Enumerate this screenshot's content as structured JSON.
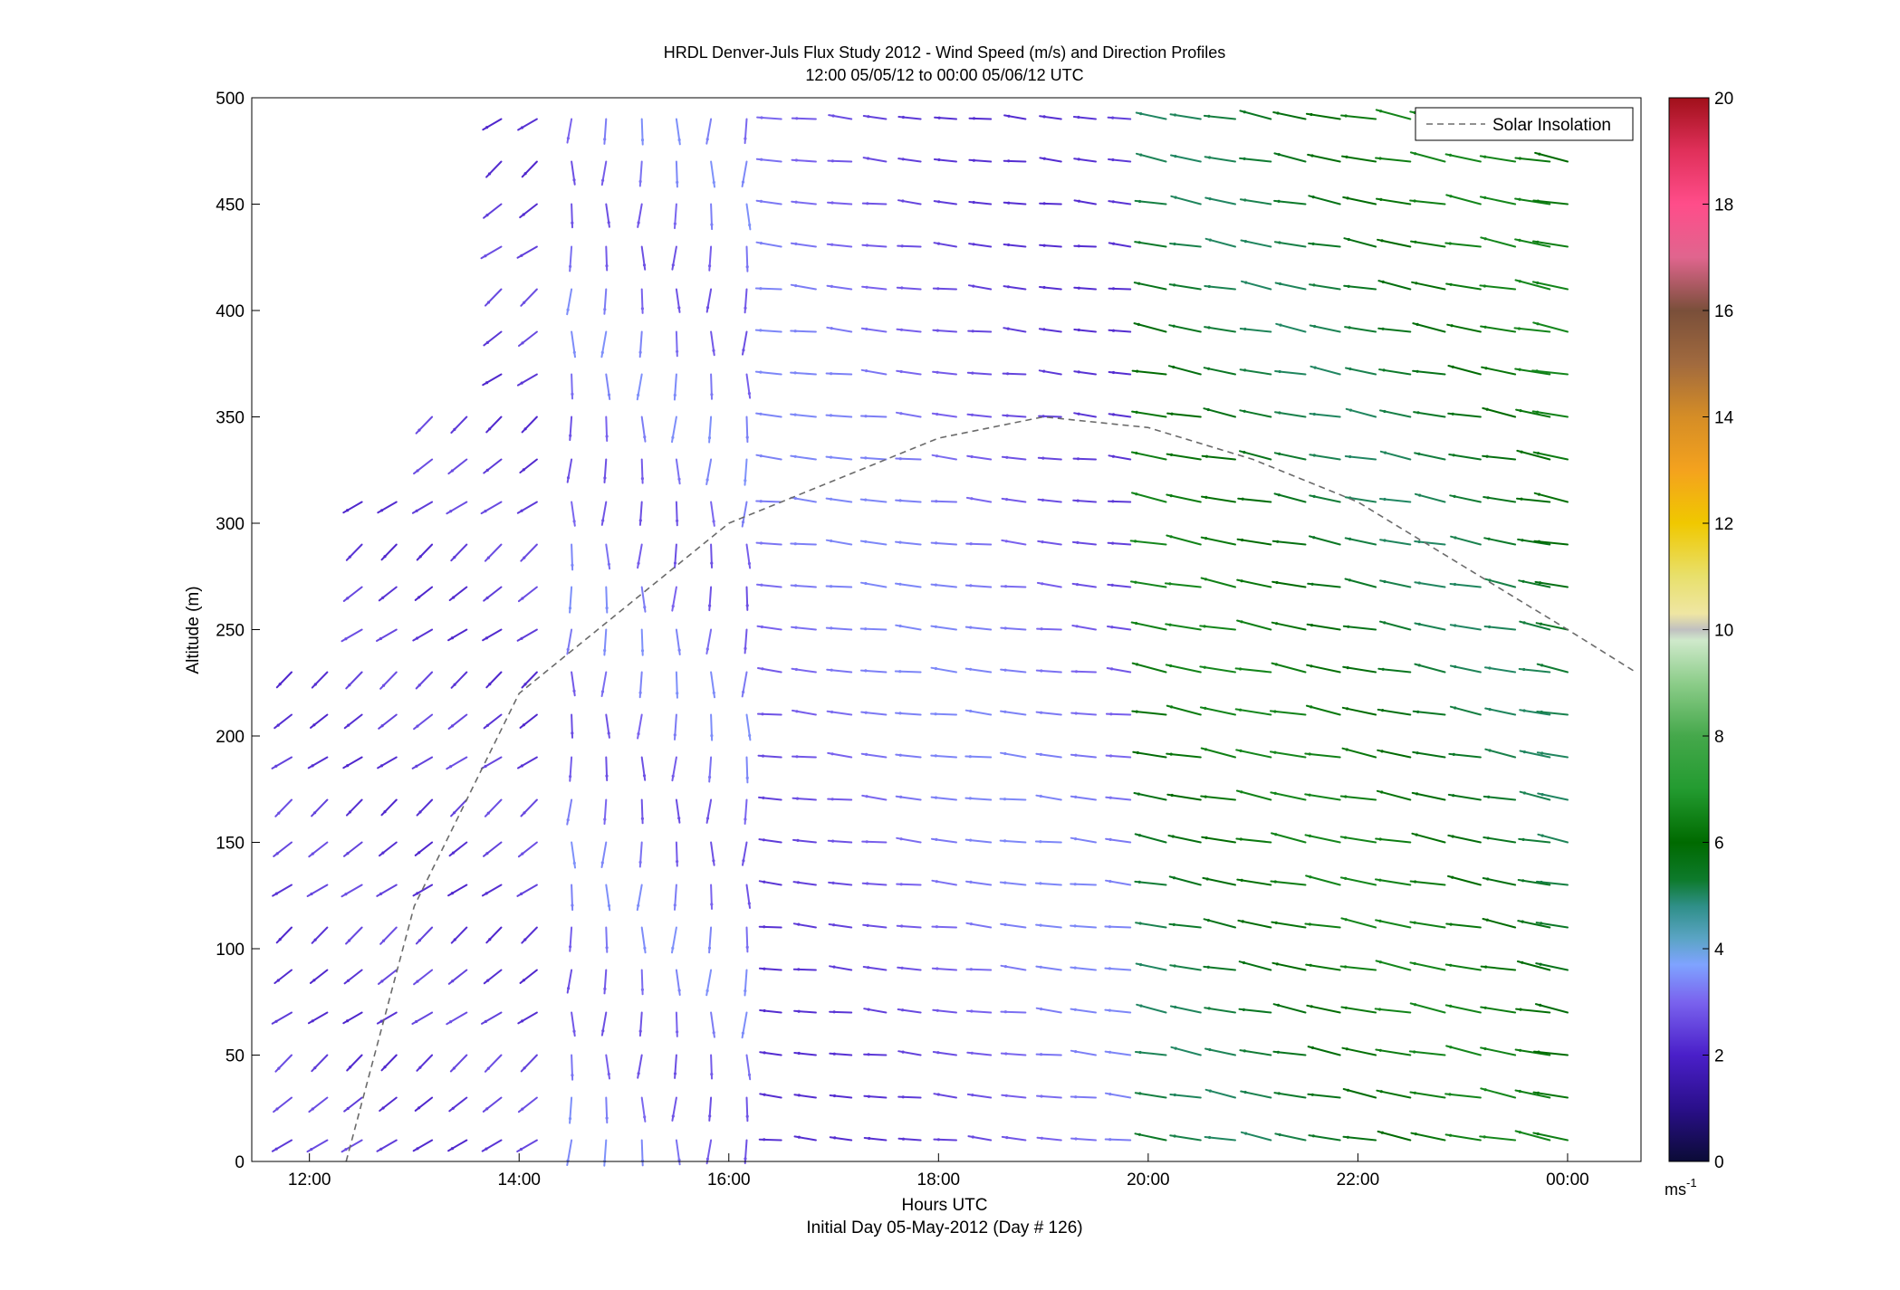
{
  "chart_data": {
    "type": "quiver",
    "title": "HRDL Denver-Juls Flux Study 2012 - Wind Speed (m/s) and Direction Profiles",
    "subtitle": "12:00 05/05/12 to 00:00 05/06/12  UTC",
    "xlabel": "Hours UTC",
    "xlabel2": "Initial Day 05-May-2012 (Day # 126)",
    "ylabel": "Altitude (m)",
    "xlim_hours": [
      11.45,
      24.7
    ],
    "ylim": [
      0,
      500
    ],
    "x_ticks": [
      {
        "value": 12,
        "label": "12:00"
      },
      {
        "value": 14,
        "label": "14:00"
      },
      {
        "value": 16,
        "label": "16:00"
      },
      {
        "value": 18,
        "label": "18:00"
      },
      {
        "value": 20,
        "label": "20:00"
      },
      {
        "value": 22,
        "label": "22:00"
      },
      {
        "value": 24,
        "label": "00:00"
      }
    ],
    "y_ticks": [
      0,
      50,
      100,
      150,
      200,
      250,
      300,
      350,
      400,
      450,
      500
    ],
    "legend": {
      "label": "Solar Insolation",
      "placement": "top-right",
      "style": "dashed",
      "color": "#666666"
    },
    "solar_insolation": {
      "x": [
        12.35,
        13,
        14,
        15,
        16,
        17,
        18,
        19,
        20,
        21,
        22,
        23,
        24,
        24.65
      ],
      "y": [
        0,
        120,
        220,
        260,
        300,
        320,
        340,
        350,
        345,
        330,
        310,
        280,
        250,
        230
      ]
    },
    "colorbar": {
      "range": [
        0,
        20
      ],
      "ticks": [
        0,
        2,
        4,
        6,
        8,
        10,
        12,
        14,
        16,
        18,
        20
      ],
      "unit": "ms",
      "unit_exponent": "-1",
      "stops": [
        {
          "v": 0,
          "c": "#0b0b36"
        },
        {
          "v": 1,
          "c": "#2a0f8a"
        },
        {
          "v": 2,
          "c": "#4a1fc9"
        },
        {
          "v": 3,
          "c": "#7a63ee"
        },
        {
          "v": 3.7,
          "c": "#7fa3ff"
        },
        {
          "v": 4.2,
          "c": "#5aa4c4"
        },
        {
          "v": 4.8,
          "c": "#2f8f88"
        },
        {
          "v": 5.3,
          "c": "#0d7a2b"
        },
        {
          "v": 6,
          "c": "#006a00"
        },
        {
          "v": 7,
          "c": "#239b30"
        },
        {
          "v": 8,
          "c": "#45a84b"
        },
        {
          "v": 9,
          "c": "#8dcd8a"
        },
        {
          "v": 9.8,
          "c": "#cfe9cb"
        },
        {
          "v": 10,
          "c": "#c0c0c0"
        },
        {
          "v": 10.3,
          "c": "#efe6a3"
        },
        {
          "v": 11,
          "c": "#e8e06c"
        },
        {
          "v": 12,
          "c": "#f0c800"
        },
        {
          "v": 13,
          "c": "#f4a21e"
        },
        {
          "v": 14,
          "c": "#d58d26"
        },
        {
          "v": 15,
          "c": "#a16a3e"
        },
        {
          "v": 16,
          "c": "#7a4f3a"
        },
        {
          "v": 17,
          "c": "#e0658e"
        },
        {
          "v": 18,
          "c": "#ff4d8a"
        },
        {
          "v": 19,
          "c": "#e0305a"
        },
        {
          "v": 20,
          "c": "#a0101a"
        }
      ]
    },
    "time_columns_hours": [
      11.83,
      12.17,
      12.5,
      12.83,
      13.17,
      13.5,
      13.83,
      14.17,
      14.5,
      14.83,
      15.17,
      15.5,
      15.83,
      16.17,
      16.5,
      16.83,
      17.17,
      17.5,
      17.83,
      18.17,
      18.5,
      18.83,
      19.17,
      19.5,
      19.83,
      20.17,
      20.5,
      20.83,
      21.17,
      21.5,
      21.83,
      22.17,
      22.5,
      22.83,
      23.17,
      23.5,
      23.83,
      24.0
    ],
    "altitudes": [
      10,
      30,
      50,
      70,
      90,
      110,
      130,
      150,
      170,
      190,
      210,
      230,
      250,
      270,
      290,
      310,
      330,
      350,
      370,
      390,
      410,
      430,
      450,
      470,
      490
    ]
  }
}
